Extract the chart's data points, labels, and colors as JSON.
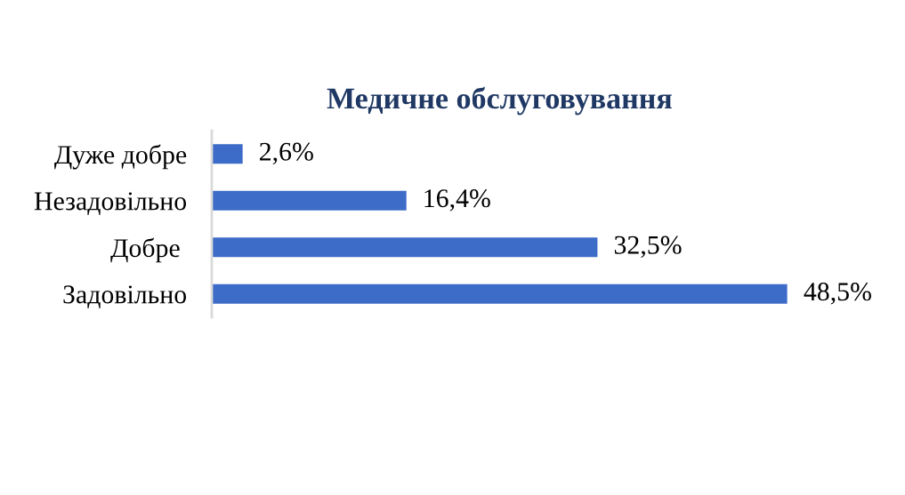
{
  "chart_data": {
    "type": "bar",
    "orientation": "horizontal",
    "title": "Медичне обслуговування",
    "categories": [
      "Дуже добре",
      "Незадовільно",
      "Добре ",
      "Задовільно"
    ],
    "values": [
      2.6,
      16.4,
      32.5,
      48.5
    ],
    "color": "#3c6bc8",
    "value_labels": [
      "2,6%",
      "16,4%",
      "32,5%",
      "48,5%"
    ],
    "grid": false,
    "legend": false,
    "tick_labels": "y"
  }
}
